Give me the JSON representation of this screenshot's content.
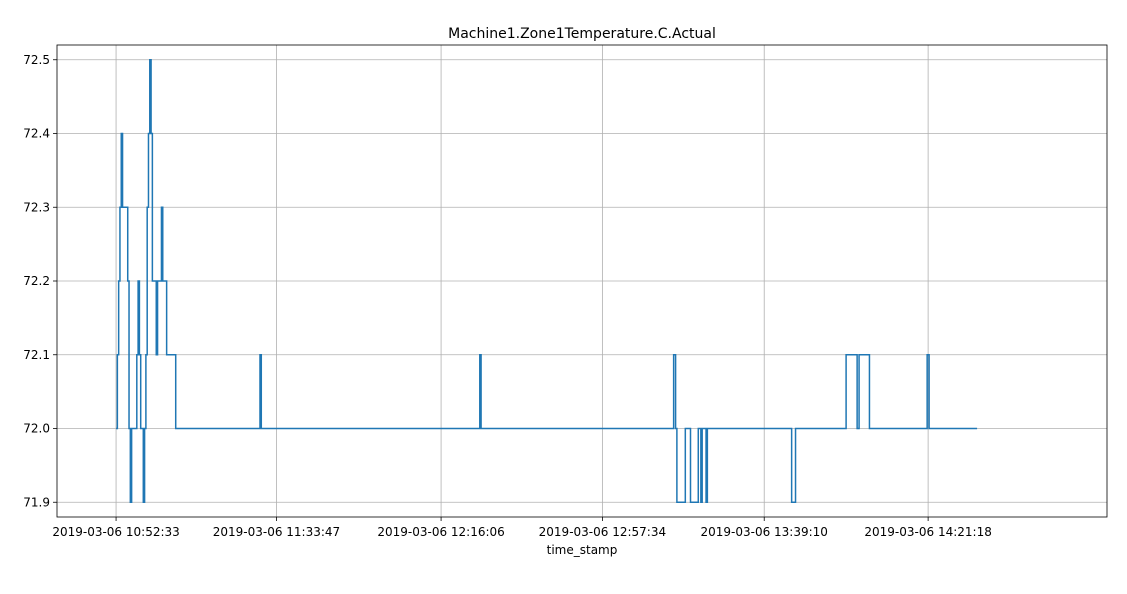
{
  "chart_data": {
    "type": "line",
    "drawstyle": "steps-post",
    "title": "Machine1.Zone1Temperature.C.Actual",
    "xlabel": "time_stamp",
    "ylabel": "",
    "grid": true,
    "legend": false,
    "xlim": [
      "2019-03-06 10:37:22",
      "2019-03-06 15:07:17"
    ],
    "ylim": [
      71.88,
      72.52
    ],
    "xticks": [
      "2019-03-06 10:52:33",
      "2019-03-06 11:33:47",
      "2019-03-06 12:16:06",
      "2019-03-06 12:57:34",
      "2019-03-06 13:39:10",
      "2019-03-06 14:21:18"
    ],
    "yticks": [
      71.9,
      72.0,
      72.1,
      72.2,
      72.3,
      72.4,
      72.5
    ],
    "series": [
      {
        "name": "",
        "color": "#1f77b4",
        "x": [
          "2019-03-06 10:52:33",
          "2019-03-06 10:52:53",
          "2019-03-06 10:53:13",
          "2019-03-06 10:53:33",
          "2019-03-06 10:53:53",
          "2019-03-06 10:54:13",
          "2019-03-06 10:55:33",
          "2019-03-06 10:55:53",
          "2019-03-06 10:56:13",
          "2019-03-06 10:56:33",
          "2019-03-06 10:57:53",
          "2019-03-06 10:58:13",
          "2019-03-06 10:58:33",
          "2019-03-06 10:58:53",
          "2019-03-06 10:59:33",
          "2019-03-06 10:59:53",
          "2019-03-06 11:00:13",
          "2019-03-06 11:00:33",
          "2019-03-06 11:00:53",
          "2019-03-06 11:01:13",
          "2019-03-06 11:01:33",
          "2019-03-06 11:01:53",
          "2019-03-06 11:02:53",
          "2019-03-06 11:03:13",
          "2019-03-06 11:04:13",
          "2019-03-06 11:04:33",
          "2019-03-06 11:05:33",
          "2019-03-06 11:05:53",
          "2019-03-06 11:06:13",
          "2019-03-06 11:07:33",
          "2019-03-06 11:07:53",
          "2019-03-06 11:13:03",
          "2019-03-06 11:29:33",
          "2019-03-06 11:29:53",
          "2019-03-06 12:26:03",
          "2019-03-06 12:26:23",
          "2019-03-06 13:15:53",
          "2019-03-06 13:16:23",
          "2019-03-06 13:16:43",
          "2019-03-06 13:17:23",
          "2019-03-06 13:18:53",
          "2019-03-06 13:20:13",
          "2019-03-06 13:22:13",
          "2019-03-06 13:22:53",
          "2019-03-06 13:23:13",
          "2019-03-06 13:24:13",
          "2019-03-06 13:24:33",
          "2019-03-06 13:46:13",
          "2019-03-06 13:47:13",
          "2019-03-06 14:00:13",
          "2019-03-06 14:03:03",
          "2019-03-06 14:03:33",
          "2019-03-06 14:06:13",
          "2019-03-06 14:21:03",
          "2019-03-06 14:21:33",
          "2019-03-06 14:33:53"
        ],
        "values": [
          72.0,
          72.1,
          72.2,
          72.3,
          72.4,
          72.3,
          72.2,
          72.0,
          71.9,
          72.0,
          72.1,
          72.2,
          72.1,
          72.0,
          71.9,
          72.0,
          72.1,
          72.3,
          72.4,
          72.5,
          72.4,
          72.2,
          72.1,
          72.2,
          72.3,
          72.2,
          72.1,
          72.1,
          72.1,
          72.1,
          72.0,
          72.0,
          72.1,
          72.0,
          72.1,
          72.0,
          72.1,
          72.0,
          71.9,
          71.9,
          72.0,
          71.9,
          72.0,
          71.9,
          72.0,
          71.9,
          72.0,
          71.9,
          72.0,
          72.1,
          72.0,
          72.1,
          72.0,
          72.1,
          72.0,
          72.0
        ]
      }
    ]
  }
}
